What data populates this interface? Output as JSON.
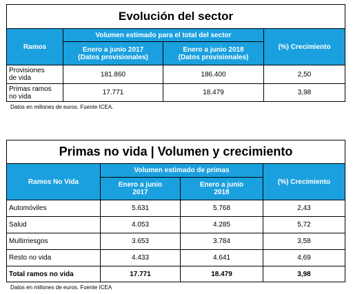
{
  "table1": {
    "title": "Evolución del sector",
    "col_ramos": "Ramos",
    "group_header": "Volumen estimado para el total del sector",
    "col_2017_line1": "Enero a junio 2017",
    "col_2017_line2": "(Datos provisionales)",
    "col_2018_line1": "Enero a junio 2018",
    "col_2018_line2": "(Datos provisionales)",
    "col_growth": "(%) Crecimiento",
    "rows": [
      {
        "label_line1": "Provisiones",
        "label_line2": "de vida",
        "v2017": "181.860",
        "v2018": "186.400",
        "growth": "2,50"
      },
      {
        "label_line1": "Primas ramos",
        "label_line2": "no vida",
        "v2017": "17.771",
        "v2018": "18.479",
        "growth": "3,98"
      }
    ],
    "note": "Datos en millones de euros. Fuente ICEA."
  },
  "table2": {
    "title": "Primas no vida | Volumen y crecimiento",
    "col_ramos": "Ramos No Vida",
    "group_header": "Volumen estimado de primas",
    "col_2017_line1": "Enero a junio",
    "col_2017_line2": "2017",
    "col_2018_line1": "Enero a junio",
    "col_2018_line2": "2018",
    "col_growth": "(%) Crecimiento",
    "rows": [
      {
        "label": "Automóviles",
        "v2017": "5.631",
        "v2018": "5.768",
        "growth": "2,43"
      },
      {
        "label": "Salud",
        "v2017": "4.053",
        "v2018": "4.285",
        "growth": "5,72"
      },
      {
        "label": "Multirriesgos",
        "v2017": "3.653",
        "v2018": "3.784",
        "growth": "3,58"
      },
      {
        "label": "Resto no vida",
        "v2017": "4.433",
        "v2018": "4.641",
        "growth": "4,69"
      }
    ],
    "total": {
      "label": "Total ramos no vida",
      "v2017": "17.771",
      "v2018": "18.479",
      "growth": "3,98"
    },
    "note": "Datos en millones de euros. Fuente ICEA"
  }
}
